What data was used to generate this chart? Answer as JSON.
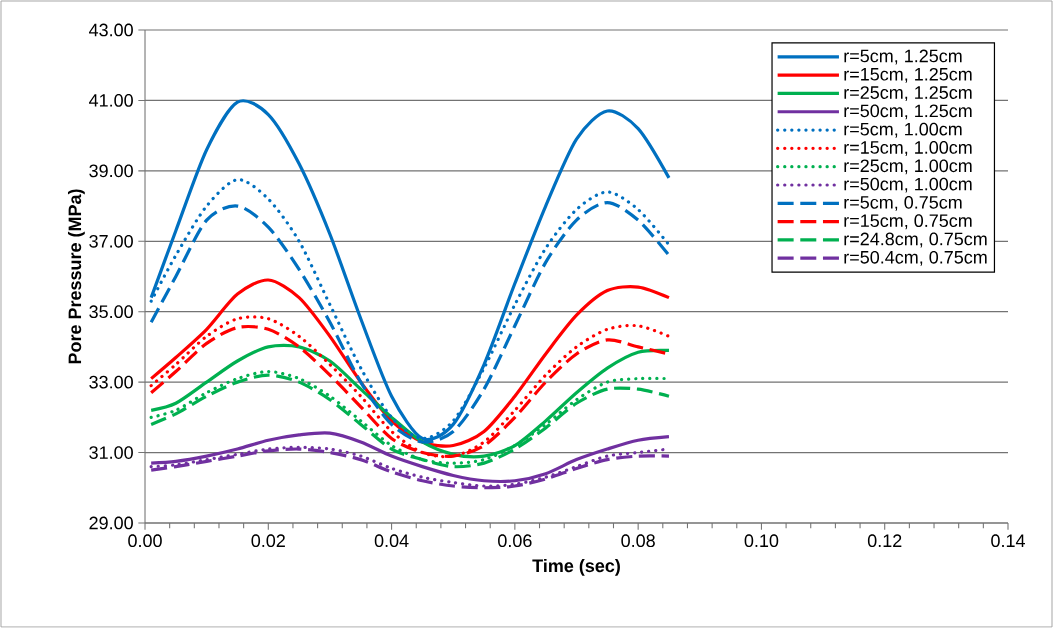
{
  "chart_data": {
    "type": "line",
    "xlabel": "Time (sec)",
    "ylabel": "Pore Pressure (MPa)",
    "x": [
      0.001,
      0.005,
      0.01,
      0.015,
      0.02,
      0.025,
      0.03,
      0.035,
      0.04,
      0.045,
      0.05,
      0.055,
      0.06,
      0.065,
      0.07,
      0.075,
      0.08,
      0.085
    ],
    "xlim": [
      0,
      0.14
    ],
    "ylim": [
      29,
      43
    ],
    "xticks": [
      {
        "value": 0,
        "label": "0.00"
      },
      {
        "value": 0.02,
        "label": "0.02"
      },
      {
        "value": 0.04,
        "label": "0.04"
      },
      {
        "value": 0.06,
        "label": "0.06"
      },
      {
        "value": 0.08,
        "label": "0.08"
      },
      {
        "value": 0.1,
        "label": "0.10"
      },
      {
        "value": 0.12,
        "label": "0.12"
      },
      {
        "value": 0.14,
        "label": "0.14"
      }
    ],
    "yticks": [
      {
        "value": 29,
        "label": "29.00"
      },
      {
        "value": 31,
        "label": "31.00"
      },
      {
        "value": 33,
        "label": "33.00"
      },
      {
        "value": 35,
        "label": "35.00"
      },
      {
        "value": 37,
        "label": "37.00"
      },
      {
        "value": 39,
        "label": "39.00"
      },
      {
        "value": 41,
        "label": "41.00"
      },
      {
        "value": 43,
        "label": "43.00"
      }
    ],
    "grid": "y",
    "legend": "top right",
    "marker": "none",
    "series": [
      {
        "name": "r=5cm, 1.25cm",
        "color": "#0070c0",
        "line_style": "solid",
        "values": [
          35.4,
          37.3,
          39.6,
          40.95,
          40.6,
          39.2,
          37.2,
          34.8,
          32.6,
          31.4,
          31.8,
          33.5,
          35.8,
          38.0,
          39.9,
          40.7,
          40.2,
          38.8
        ]
      },
      {
        "name": "r=15cm, 1.25cm",
        "color": "#ff0000",
        "line_style": "solid",
        "values": [
          33.1,
          33.7,
          34.5,
          35.5,
          35.9,
          35.4,
          34.3,
          33.0,
          31.9,
          31.3,
          31.2,
          31.6,
          32.6,
          33.8,
          34.9,
          35.6,
          35.7,
          35.4
        ]
      },
      {
        "name": "r=25cm, 1.25cm",
        "color": "#00b050",
        "line_style": "solid",
        "values": [
          32.2,
          32.4,
          33.0,
          33.6,
          34.0,
          34.0,
          33.6,
          32.8,
          32.0,
          31.3,
          30.95,
          30.9,
          31.2,
          31.9,
          32.7,
          33.4,
          33.85,
          33.9
        ]
      },
      {
        "name": "r=50cm, 1.25cm",
        "color": "#7030a0",
        "line_style": "solid",
        "values": [
          30.7,
          30.75,
          30.9,
          31.1,
          31.35,
          31.5,
          31.55,
          31.3,
          30.9,
          30.6,
          30.35,
          30.2,
          30.2,
          30.4,
          30.8,
          31.1,
          31.35,
          31.45
        ]
      },
      {
        "name": "r=5cm, 1.00cm",
        "color": "#0070c0",
        "line_style": "dotted",
        "values": [
          35.3,
          36.6,
          38.0,
          38.75,
          38.2,
          37.0,
          35.2,
          33.4,
          32.0,
          31.4,
          31.9,
          33.4,
          35.2,
          36.8,
          37.9,
          38.4,
          37.9,
          36.9
        ]
      },
      {
        "name": "r=15cm, 1.00cm",
        "color": "#ff0000",
        "line_style": "dotted",
        "values": [
          32.9,
          33.5,
          34.3,
          34.8,
          34.8,
          34.3,
          33.5,
          32.6,
          31.6,
          31.0,
          30.9,
          31.3,
          32.2,
          33.2,
          34.0,
          34.5,
          34.6,
          34.3
        ]
      },
      {
        "name": "r=25cm, 1.00cm",
        "color": "#00b050",
        "line_style": "dotted",
        "values": [
          32.0,
          32.2,
          32.7,
          33.1,
          33.3,
          33.1,
          32.6,
          31.9,
          31.2,
          30.8,
          30.7,
          30.8,
          31.2,
          31.8,
          32.5,
          33.0,
          33.1,
          33.1
        ]
      },
      {
        "name": "r=50cm, 1.00cm",
        "color": "#7030a0",
        "line_style": "dotted",
        "values": [
          30.6,
          30.65,
          30.8,
          30.95,
          31.1,
          31.15,
          31.1,
          30.9,
          30.55,
          30.3,
          30.15,
          30.05,
          30.1,
          30.3,
          30.6,
          30.9,
          31.0,
          31.1
        ]
      },
      {
        "name": "r=5cm, 0.75cm",
        "color": "#0070c0",
        "line_style": "dashed",
        "values": [
          34.7,
          36.0,
          37.6,
          38.0,
          37.4,
          36.2,
          34.7,
          33.0,
          31.8,
          31.3,
          31.6,
          32.8,
          34.6,
          36.4,
          37.6,
          38.1,
          37.6,
          36.6
        ]
      },
      {
        "name": "r=15cm, 0.75cm",
        "color": "#ff0000",
        "line_style": "dashed",
        "values": [
          32.7,
          33.3,
          34.1,
          34.55,
          34.5,
          34.0,
          33.2,
          32.3,
          31.4,
          31.0,
          30.9,
          31.2,
          32.0,
          33.0,
          33.8,
          34.2,
          34.0,
          33.8
        ]
      },
      {
        "name": "r=24.8cm, 0.75cm",
        "color": "#00b050",
        "line_style": "dashed",
        "values": [
          31.8,
          32.1,
          32.6,
          33.0,
          33.2,
          33.0,
          32.5,
          31.8,
          31.1,
          30.8,
          30.6,
          30.7,
          31.1,
          31.7,
          32.4,
          32.8,
          32.8,
          32.6
        ]
      },
      {
        "name": "r=50.4cm, 0.75cm",
        "color": "#7030a0",
        "line_style": "dashed",
        "values": [
          30.5,
          30.6,
          30.75,
          30.9,
          31.05,
          31.1,
          31.0,
          30.8,
          30.45,
          30.2,
          30.05,
          30.0,
          30.05,
          30.25,
          30.55,
          30.8,
          30.9,
          30.9
        ]
      }
    ]
  }
}
